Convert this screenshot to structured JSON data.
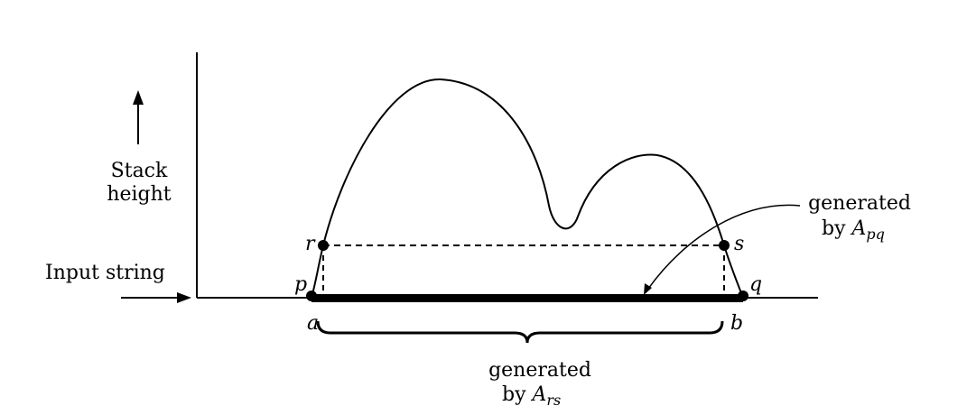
{
  "labels": {
    "stack_line1": "Stack",
    "stack_line2": "height",
    "input_string": "Input string",
    "point_p": "p",
    "point_q": "q",
    "point_r": "r",
    "point_s": "s",
    "point_a": "a",
    "point_b": "b",
    "gen_pq_line1": "generated",
    "gen_pq_by": "by ",
    "gen_pq_var": "A",
    "gen_pq_sub": "pq",
    "gen_rs_line1": "generated",
    "gen_rs_by": "by ",
    "gen_rs_var": "A",
    "gen_rs_sub": "rs"
  },
  "colors": {
    "ink": "#000000",
    "background": "#ffffff"
  }
}
